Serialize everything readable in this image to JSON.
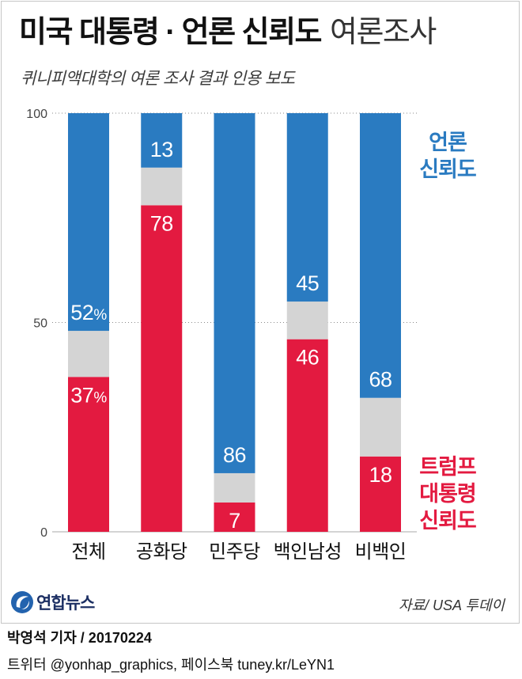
{
  "chart_data": {
    "type": "bar",
    "stacked": true,
    "title": {
      "bold": "미국 대통령 · 언론 신뢰도",
      "light": "여론조사"
    },
    "subtitle": "퀴니피액대학의 여론 조사 결과 인용 보도",
    "categories": [
      "전체",
      "공화당",
      "민주당",
      "백인남성",
      "비백인"
    ],
    "series": [
      {
        "name": "트럼프 대통령 신뢰도",
        "color": "#e31a40",
        "values": [
          37,
          78,
          7,
          46,
          18
        ],
        "labels": [
          "37%",
          "78",
          "7",
          "46",
          "18"
        ]
      },
      {
        "color": "#d4d4d4",
        "values": [
          11,
          9,
          7,
          9,
          14
        ]
      },
      {
        "name": "언론 신뢰도",
        "color": "#2a7bc1",
        "values": [
          52,
          13,
          86,
          45,
          68
        ],
        "labels": [
          "52%",
          "13",
          "86",
          "45",
          "68"
        ]
      }
    ],
    "ylim": [
      0,
      100
    ],
    "yticks": [
      0,
      50,
      100
    ],
    "grid": true,
    "legend_position": "right"
  },
  "logo": {
    "text": "연합뉴스",
    "color": "#2363ae"
  },
  "source": "자료/ USA 투데이",
  "footer": {
    "byline": "박영석 기자 / 20170224",
    "social": "트위터 @yonhap_graphics, 페이스북 tuney.kr/LeYN1"
  }
}
